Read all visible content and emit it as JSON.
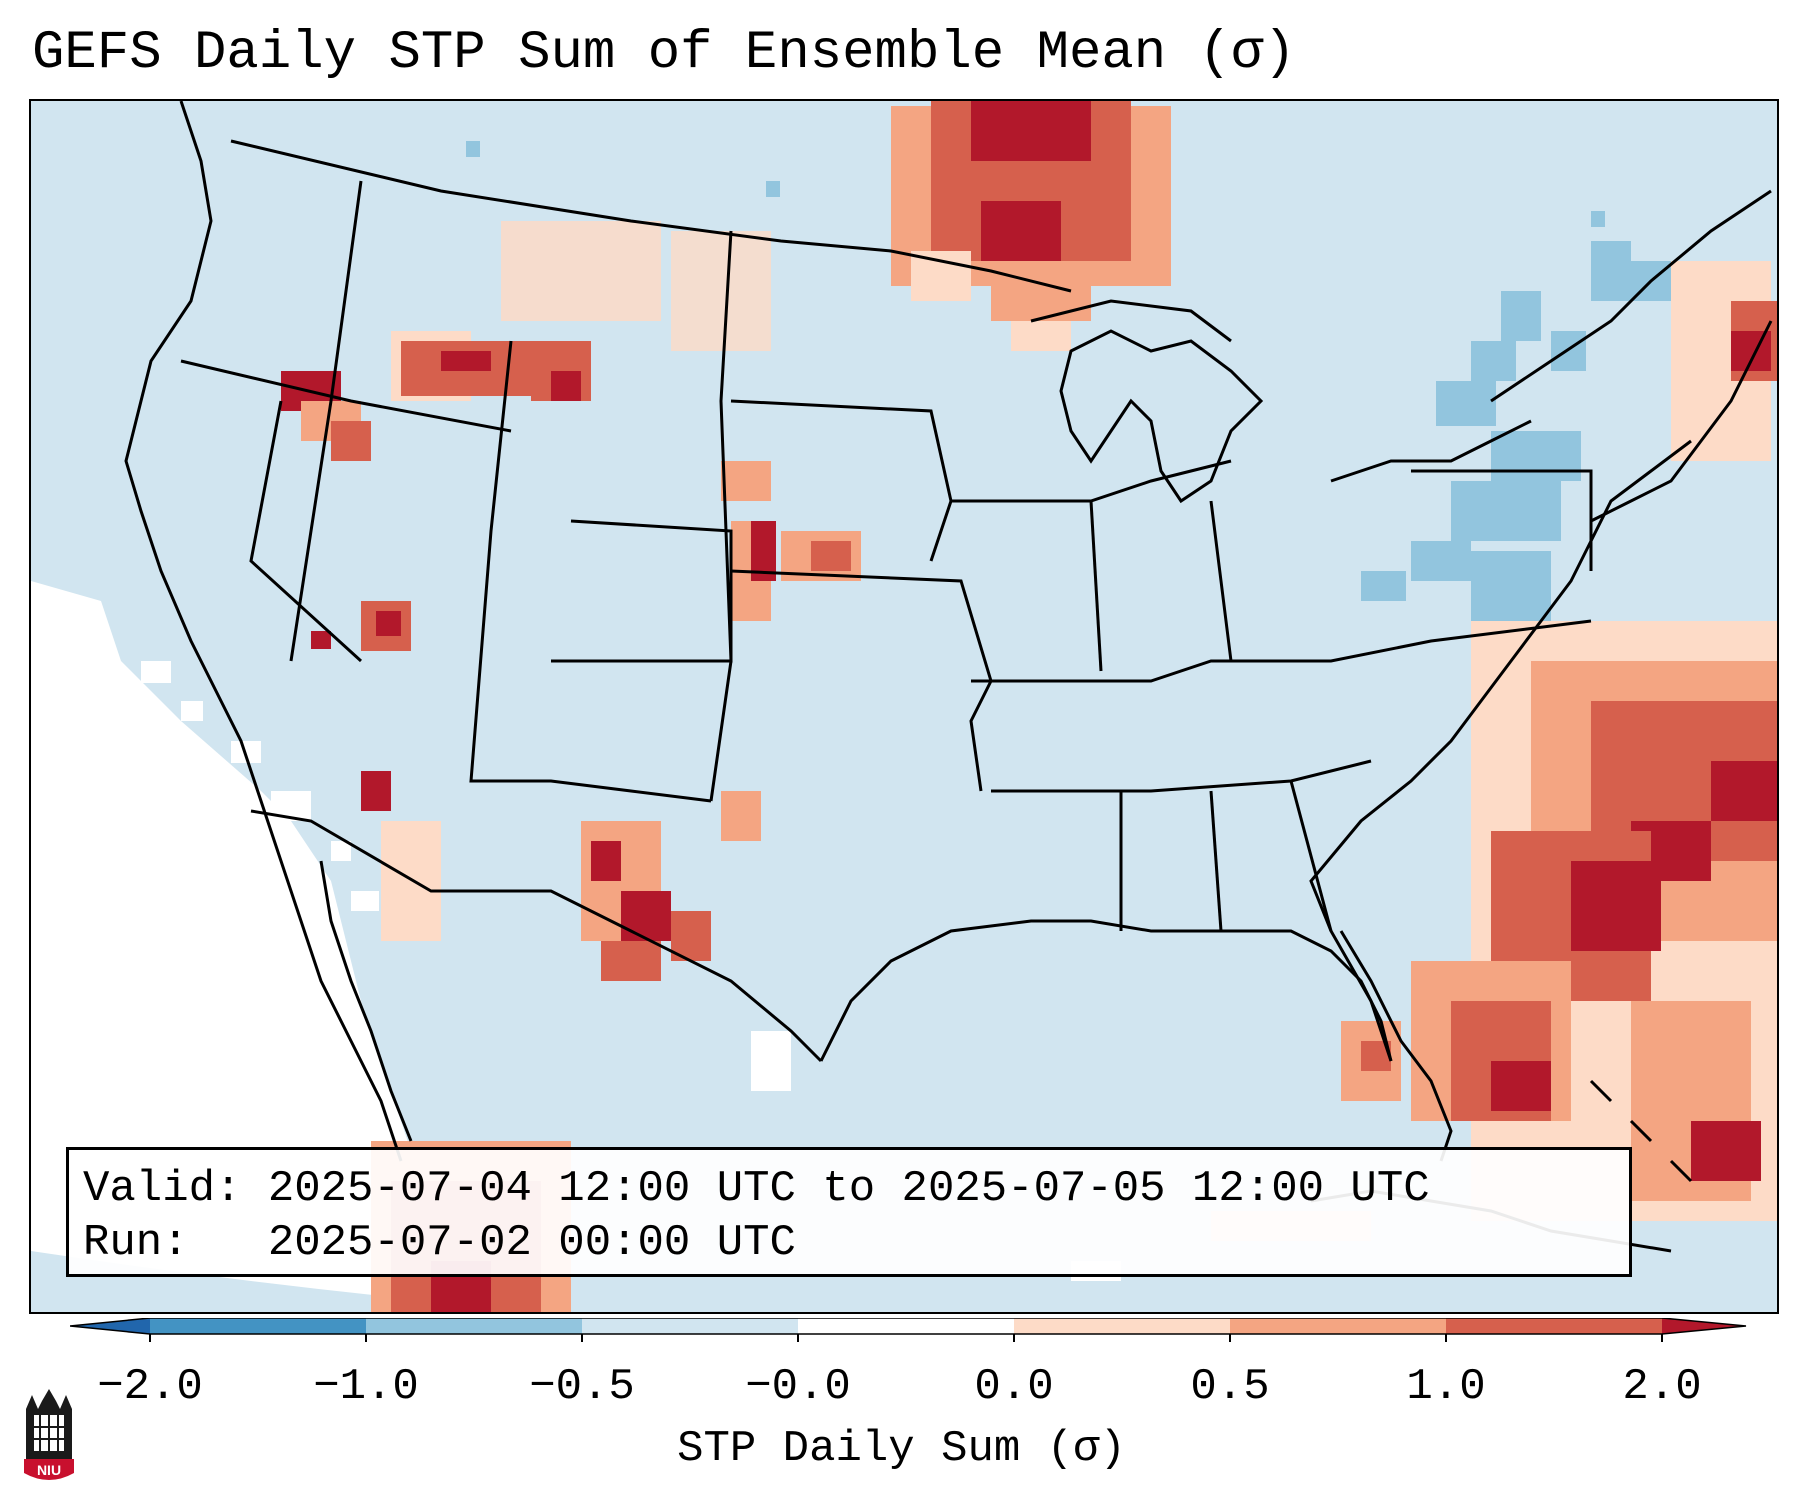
{
  "title": "GEFS Daily STP Sum of Ensemble Mean (σ)",
  "info": {
    "valid_label": "Valid:",
    "valid_value": "2025-07-04 12:00 UTC to 2025-07-05 12:00 UTC",
    "run_label": "Run:",
    "run_value": "2025-07-02 00:00 UTC"
  },
  "colorbar": {
    "label": "STP Daily Sum (σ)",
    "ticks": [
      "−2.0",
      "−1.0",
      "−0.5",
      "−0.0",
      "0.0",
      "0.5",
      "1.0",
      "2.0"
    ],
    "bin_colors": [
      "#2166ac",
      "#4393c3",
      "#92c5de",
      "#d1e5f0",
      "#ffffff",
      "#fddbc7",
      "#f4a582",
      "#d6604d",
      "#b2182b"
    ]
  },
  "logo": {
    "text": "NIU",
    "icon": "niu-castle-logo"
  },
  "map": {
    "background_value_color": "#d1e5f0",
    "features": [
      "state-borders",
      "coastlines",
      "great-lakes"
    ]
  }
}
